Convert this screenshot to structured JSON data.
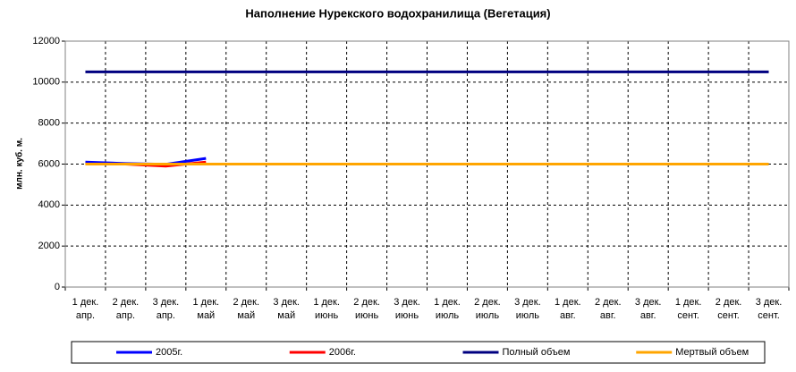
{
  "chart_data": {
    "type": "line",
    "title": "Наполнение Нурекского водохранилища (Вегетация)",
    "y_label": "млн. куб. м.",
    "categories": [
      "1 дек.\nапр.",
      "2 дек.\nапр.",
      "3 дек.\nапр.",
      "1 дек.\nмай",
      "2 дек.\nмай",
      "3 дек.\nмай",
      "1 дек.\nиюнь",
      "2 дек.\nиюнь",
      "3 дек.\nиюнь",
      "1 дек.\nиюль",
      "2 дек.\nиюль",
      "3 дек.\nиюль",
      "1 дек.\nавг.",
      "2 дек.\nавг.",
      "3 дек.\nавг.",
      "1 дек.\nсент.",
      "2 дек.\nсент.",
      "3 дек.\nсент."
    ],
    "series": [
      {
        "name": "2005г.",
        "color": "#0000ff",
        "values": [
          6100,
          6030,
          5990,
          6280,
          null,
          null,
          null,
          null,
          null,
          null,
          null,
          null,
          null,
          null,
          null,
          null,
          null,
          null
        ]
      },
      {
        "name": "2006г.",
        "color": "#ff0000",
        "values": [
          6000,
          6000,
          5900,
          6100,
          null,
          null,
          null,
          null,
          null,
          null,
          null,
          null,
          null,
          null,
          null,
          null,
          null,
          null
        ]
      },
      {
        "name": "Полный объем",
        "color": "#000080",
        "values": [
          10500,
          10500,
          10500,
          10500,
          10500,
          10500,
          10500,
          10500,
          10500,
          10500,
          10500,
          10500,
          10500,
          10500,
          10500,
          10500,
          10500,
          10500
        ]
      },
      {
        "name": "Мертвый объем",
        "color": "#ffa500",
        "values": [
          6000,
          6000,
          6000,
          6000,
          6000,
          6000,
          6000,
          6000,
          6000,
          6000,
          6000,
          6000,
          6000,
          6000,
          6000,
          6000,
          6000,
          6000
        ]
      }
    ],
    "ylim": [
      0,
      12000
    ],
    "yticks": [
      0,
      2000,
      4000,
      6000,
      8000,
      10000,
      12000
    ],
    "grid": true
  }
}
